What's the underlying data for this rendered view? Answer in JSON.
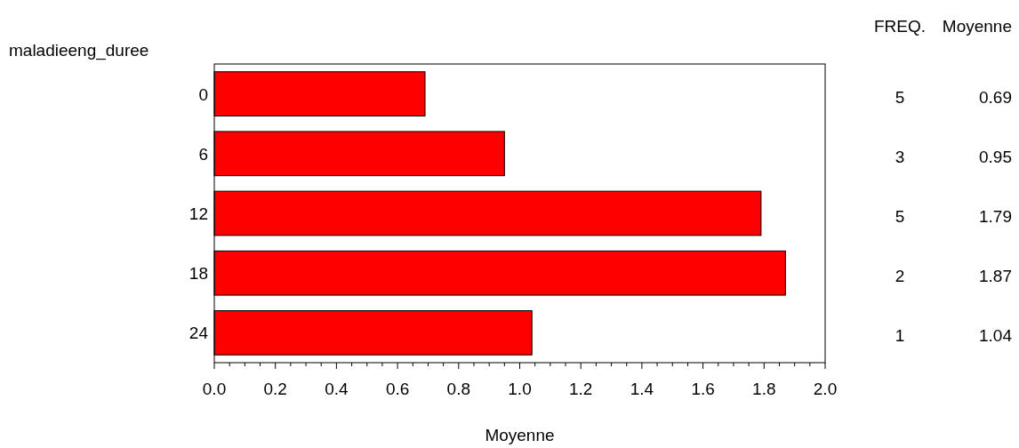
{
  "chart_data": {
    "type": "bar",
    "orientation": "horizontal",
    "ylabel": "maladieeng_duree",
    "xlabel": "Moyenne",
    "categories": [
      "0",
      "6",
      "12",
      "18",
      "24"
    ],
    "values": [
      0.69,
      0.95,
      1.79,
      1.87,
      1.04
    ],
    "color": "#ff0000",
    "data_labels": true,
    "grid": false,
    "xlim": [
      0,
      2.0
    ],
    "xticks": [
      {
        "value": 0,
        "label": "0.0"
      },
      {
        "value": 0.05,
        "label": null
      },
      {
        "value": 0.1,
        "label": null
      },
      {
        "value": 0.15,
        "label": null
      },
      {
        "value": 0.2,
        "label": "0.2"
      },
      {
        "value": 0.25,
        "label": null
      },
      {
        "value": 0.3,
        "label": null
      },
      {
        "value": 0.35,
        "label": null
      },
      {
        "value": 0.4,
        "label": "0.4"
      },
      {
        "value": 0.45,
        "label": null
      },
      {
        "value": 0.5,
        "label": null
      },
      {
        "value": 0.55,
        "label": null
      },
      {
        "value": 0.6,
        "label": "0.6"
      },
      {
        "value": 0.65,
        "label": null
      },
      {
        "value": 0.7,
        "label": null
      },
      {
        "value": 0.75,
        "label": null
      },
      {
        "value": 0.8,
        "label": "0.8"
      },
      {
        "value": 0.85,
        "label": null
      },
      {
        "value": 0.9,
        "label": null
      },
      {
        "value": 0.95,
        "label": null
      },
      {
        "value": 1.0,
        "label": "1.0"
      },
      {
        "value": 1.05,
        "label": null
      },
      {
        "value": 1.1,
        "label": null
      },
      {
        "value": 1.15,
        "label": null
      },
      {
        "value": 1.2,
        "label": "1.2"
      },
      {
        "value": 1.25,
        "label": null
      },
      {
        "value": 1.3,
        "label": null
      },
      {
        "value": 1.35,
        "label": null
      },
      {
        "value": 1.4,
        "label": "1.4"
      },
      {
        "value": 1.45,
        "label": null
      },
      {
        "value": 1.5,
        "label": null
      },
      {
        "value": 1.55,
        "label": null
      },
      {
        "value": 1.6,
        "label": "1.6"
      },
      {
        "value": 1.65,
        "label": null
      },
      {
        "value": 1.7,
        "label": null
      },
      {
        "value": 1.75,
        "label": null
      },
      {
        "value": 1.8,
        "label": "1.8"
      },
      {
        "value": 1.85,
        "label": null
      },
      {
        "value": 1.9,
        "label": null
      },
      {
        "value": 1.95,
        "label": null
      },
      {
        "value": 2.0,
        "label": "2.0"
      }
    ],
    "annotations": [
      "FREQ.",
      "Moyenne",
      "5",
      "3",
      "5",
      "2",
      "1"
    ]
  }
}
